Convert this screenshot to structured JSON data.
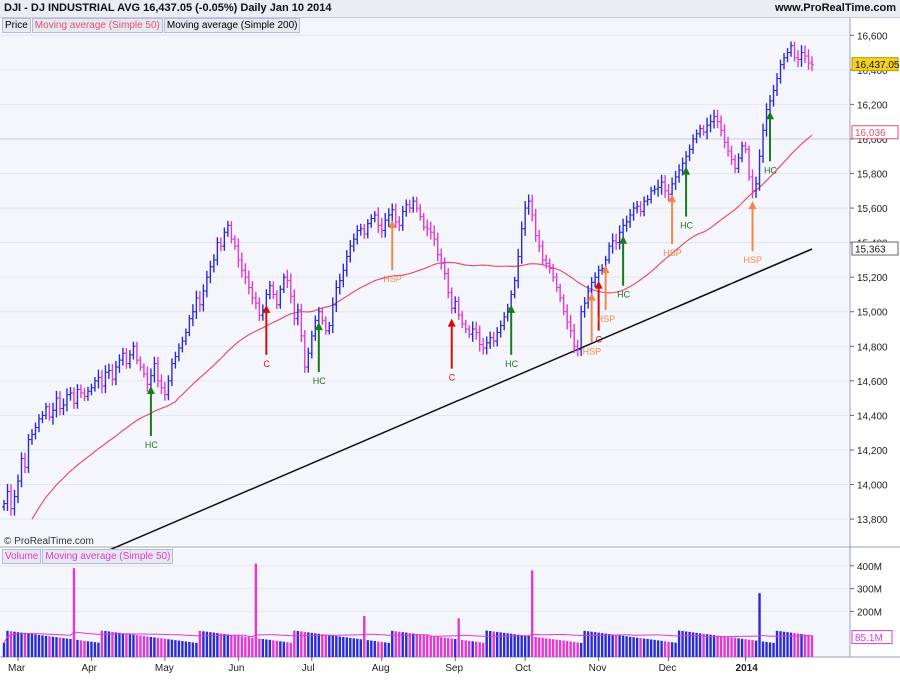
{
  "header": {
    "symbol_line": "DJI - DJ INDUSTRIAL AVG   16,437.05 (-0.05%)   Daily  Jan 10 2014",
    "brand": "www.ProRealTime.com"
  },
  "price_legend": [
    "Price",
    "Moving average (Simple 50)",
    "Moving average (Simple 200)"
  ],
  "volume_legend": [
    "Volume",
    "Moving average (Simple 50)"
  ],
  "watermark": "© ProRealTime.com",
  "colors": {
    "up": "#2b2bd6",
    "down": "#e03ad0",
    "ma50": "#e8506a",
    "ma200": "#111111",
    "vol_ma": "#e03ad0",
    "hc": "#1a7a1a",
    "hsp": "#f0884a",
    "c": "#d01010",
    "last_box": "#f4d21a",
    "plot_bg": "#f5f6fc"
  },
  "chart_data": [
    {
      "type": "ohlc",
      "ylim": [
        13650,
        16700
      ],
      "y_ticks": [
        "13,800",
        "14,000",
        "14,200",
        "14,400",
        "14,600",
        "14,800",
        "15,000",
        "15,200",
        "15,400",
        "15,600",
        "15,800",
        "16,000",
        "16,200",
        "16,400",
        "16,600"
      ],
      "x_ticks": [
        "Mar",
        "Apr",
        "May",
        "Jun",
        "Jul",
        "Aug",
        "Sep",
        "Oct",
        "Nov",
        "Dec",
        "2014"
      ],
      "last_price": "16,437.05",
      "ma50_last": "16,036",
      "ma200_last": "15,363",
      "close": [
        13890,
        13960,
        13860,
        13930,
        14020,
        14150,
        14100,
        14260,
        14290,
        14330,
        14380,
        14400,
        14450,
        14390,
        14430,
        14500,
        14440,
        14460,
        14520,
        14530,
        14470,
        14550,
        14530,
        14510,
        14540,
        14560,
        14600,
        14620,
        14570,
        14650,
        14660,
        14610,
        14680,
        14720,
        14760,
        14700,
        14750,
        14800,
        14720,
        14680,
        14640,
        14580,
        14630,
        14700,
        14600,
        14560,
        14520,
        14600,
        14700,
        14740,
        14790,
        14830,
        14880,
        14960,
        15000,
        15080,
        15040,
        15120,
        15200,
        15260,
        15300,
        15400,
        15380,
        15460,
        15500,
        15420,
        15380,
        15300,
        15240,
        15200,
        15140,
        15080,
        15050,
        14980,
        15010,
        15100,
        15150,
        15100,
        15040,
        15130,
        15200,
        15180,
        15090,
        14960,
        15010,
        14860,
        14680,
        14760,
        14860,
        14950,
        15000,
        14950,
        14890,
        14920,
        15040,
        15140,
        15180,
        15240,
        15320,
        15380,
        15420,
        15470,
        15480,
        15450,
        15510,
        15540,
        15560,
        15500,
        15470,
        15530,
        15560,
        15590,
        15520,
        15500,
        15580,
        15620,
        15600,
        15640,
        15600,
        15550,
        15490,
        15480,
        15460,
        15420,
        15330,
        15280,
        15220,
        15110,
        15020,
        15060,
        14980,
        14930,
        14900,
        14870,
        14900,
        14880,
        14810,
        14790,
        14820,
        14850,
        14830,
        14880,
        14920,
        14970,
        15020,
        15100,
        15180,
        15320,
        15480,
        15600,
        15640,
        15560,
        15440,
        15380,
        15300,
        15280,
        15250,
        15200,
        15140,
        15080,
        15000,
        14940,
        14890,
        14800,
        14780,
        15000,
        15050,
        15120,
        15170,
        15200,
        15240,
        15250,
        15300,
        15380,
        15410,
        15400,
        15460,
        15500,
        15520,
        15560,
        15600,
        15610,
        15580,
        15640,
        15650,
        15700,
        15710,
        15720,
        15750,
        15700,
        15680,
        15740,
        15780,
        15820,
        15860,
        15900,
        15940,
        16000,
        16030,
        16060,
        16040,
        16080,
        16100,
        16130,
        16100,
        16050,
        15980,
        15930,
        15880,
        15830,
        15890,
        15960,
        15940,
        15780,
        15700,
        15740,
        15900,
        16050,
        16170,
        16220,
        16280,
        16350,
        16430,
        16470,
        16500,
        16540,
        16470,
        16460,
        16500,
        16480,
        16440,
        16430
      ]
    },
    {
      "type": "bar",
      "title": "Volume",
      "ylim": [
        0,
        430
      ],
      "y_ticks": [
        "200M",
        "300M",
        "400M"
      ],
      "last_ma": "85.1M",
      "spikes": {
        "20": 390,
        "72": 410,
        "103": 180,
        "130": 170,
        "151": 380,
        "216": 280
      }
    }
  ],
  "annotations": [
    {
      "idx": 42,
      "label": "HC",
      "dir": "up",
      "kind": "hc"
    },
    {
      "idx": 75,
      "label": "C",
      "dir": "up",
      "kind": "c"
    },
    {
      "idx": 90,
      "label": "HC",
      "dir": "up",
      "kind": "hc"
    },
    {
      "idx": 111,
      "label": "HSP",
      "dir": "up",
      "kind": "hsp"
    },
    {
      "idx": 128,
      "label": "C",
      "dir": "up",
      "kind": "c"
    },
    {
      "idx": 145,
      "label": "HC",
      "dir": "up",
      "kind": "hc"
    },
    {
      "idx": 168,
      "label": "HSP",
      "dir": "up",
      "kind": "hsp"
    },
    {
      "idx": 170,
      "label": "C",
      "dir": "up",
      "kind": "c"
    },
    {
      "idx": 172,
      "label": "HSP",
      "dir": "down",
      "kind": "hsp"
    },
    {
      "idx": 177,
      "label": "HC",
      "dir": "up",
      "kind": "hc"
    },
    {
      "idx": 191,
      "label": "HSP",
      "dir": "up",
      "kind": "hsp"
    },
    {
      "idx": 195,
      "label": "HC",
      "dir": "up",
      "kind": "hc"
    },
    {
      "idx": 214,
      "label": "HSP",
      "dir": "up",
      "kind": "hsp"
    },
    {
      "idx": 219,
      "label": "HC",
      "dir": "up",
      "kind": "hc"
    }
  ]
}
